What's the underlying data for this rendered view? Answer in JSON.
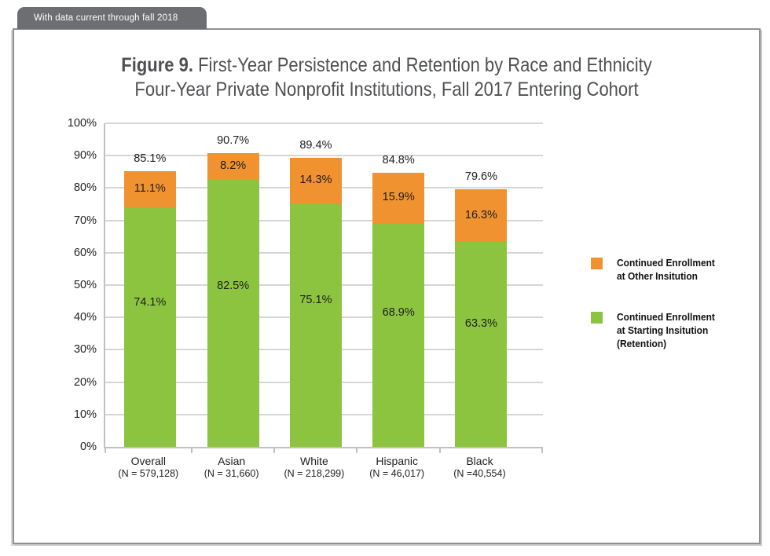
{
  "banner": {
    "text": "With data current through fall 2018"
  },
  "title": {
    "prefix": "Figure 9.",
    "line1_rest": " First-Year Persistence and Retention by Race and Ethnicity",
    "line2": "Four-Year Private Nonprofit Institutions, Fall 2017 Entering Cohort"
  },
  "chart_data": {
    "type": "bar",
    "stacked": true,
    "categories": [
      "Overall",
      "Asian",
      "White",
      "Hispanic",
      "Black"
    ],
    "category_sublabels": [
      "(N = 579,128)",
      "(N = 31,660)",
      "(N = 218,299)",
      "(N = 46,017)",
      "(N =40,554)"
    ],
    "series": [
      {
        "name": "Continued Enrollment at Starting Insitution (Retention)",
        "color": "#8cc440",
        "values": [
          74.1,
          82.5,
          75.1,
          68.9,
          63.3
        ]
      },
      {
        "name": "Continued Enrollment at Other Insitution",
        "color": "#f0922f",
        "values": [
          11.1,
          8.2,
          14.3,
          15.9,
          16.3
        ]
      }
    ],
    "totals": [
      85.1,
      90.7,
      89.4,
      84.8,
      79.6
    ],
    "y_axis": {
      "min": 0,
      "max": 100,
      "step": 10,
      "tick_suffix": "%"
    },
    "grid": true,
    "legend_position": "right",
    "colors": {
      "grid": "#d4d6d8",
      "axis": "#bfc2c4",
      "label": "#1e1e1e"
    }
  },
  "legend": {
    "items": [
      {
        "color": "#f0922f",
        "lines": [
          "Continued Enrollment",
          "at Other Insitution",
          ""
        ]
      },
      {
        "color": "#8cc440",
        "lines": [
          "Continued Enrollment",
          "at Starting Insitution",
          "(Retention)"
        ]
      }
    ]
  }
}
